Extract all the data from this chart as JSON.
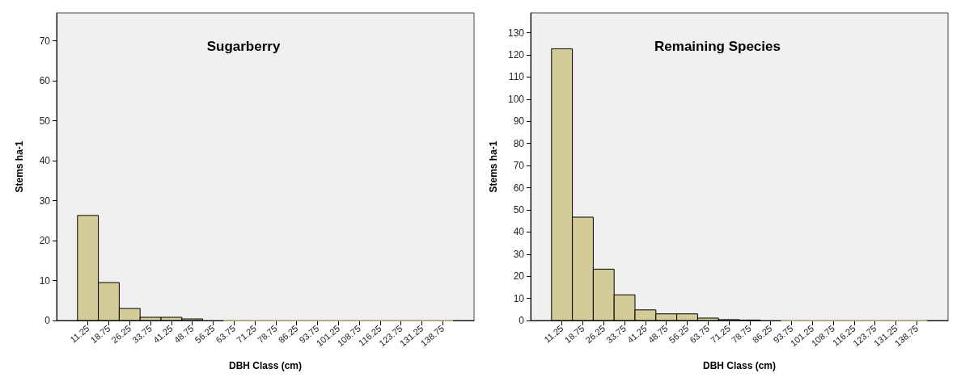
{
  "chart_data": [
    {
      "type": "histogram",
      "title": "Sugarberry",
      "xlabel": "DBH Class (cm)",
      "ylabel": "Stems ha-1",
      "color": "#d3cc98",
      "bins": [
        7.5,
        15,
        22.5,
        30,
        37.5,
        45,
        52.5,
        60,
        67.5,
        75,
        82.5,
        90,
        97.5,
        105,
        112.5,
        120,
        127.5,
        135,
        142.5
      ],
      "values": [
        26.3,
        9.5,
        3.0,
        0.8,
        0.8,
        0.4,
        null,
        0,
        0,
        0,
        0,
        0,
        0,
        0,
        0,
        0,
        0,
        0
      ],
      "xlim": [
        0,
        150
      ],
      "xticks": [
        11.25,
        18.75,
        26.25,
        33.75,
        41.25,
        48.75,
        56.25,
        63.75,
        71.25,
        78.75,
        86.25,
        93.75,
        101.25,
        108.75,
        116.25,
        123.75,
        131.25,
        138.75
      ],
      "ylim": [
        0,
        77
      ],
      "yticks": [
        0,
        10,
        20,
        30,
        40,
        50,
        60,
        70
      ],
      "grid": false
    },
    {
      "type": "histogram",
      "title": "Remaining Species",
      "xlabel": "DBH Class (cm)",
      "ylabel": "Stems ha-1",
      "color": "#d3cc98",
      "bins": [
        7.5,
        15,
        22.5,
        30,
        37.5,
        45,
        52.5,
        60,
        67.5,
        75,
        82.5,
        90,
        97.5,
        105,
        112.5,
        120,
        127.5,
        135,
        142.5
      ],
      "values": [
        122.8,
        46.7,
        23.2,
        11.6,
        4.8,
        3.0,
        3.0,
        1.1,
        0.4,
        0.2,
        null,
        0,
        0,
        0,
        0,
        0,
        0,
        0
      ],
      "xlim": [
        0,
        150
      ],
      "xticks": [
        11.25,
        18.75,
        26.25,
        33.75,
        41.25,
        48.75,
        56.25,
        63.75,
        71.25,
        78.75,
        86.25,
        93.75,
        101.25,
        108.75,
        116.25,
        123.75,
        131.25,
        138.75
      ],
      "ylim": [
        0,
        139
      ],
      "yticks": [
        0,
        10,
        20,
        30,
        40,
        50,
        60,
        70,
        80,
        90,
        100,
        110,
        120,
        130
      ],
      "grid": false
    }
  ]
}
